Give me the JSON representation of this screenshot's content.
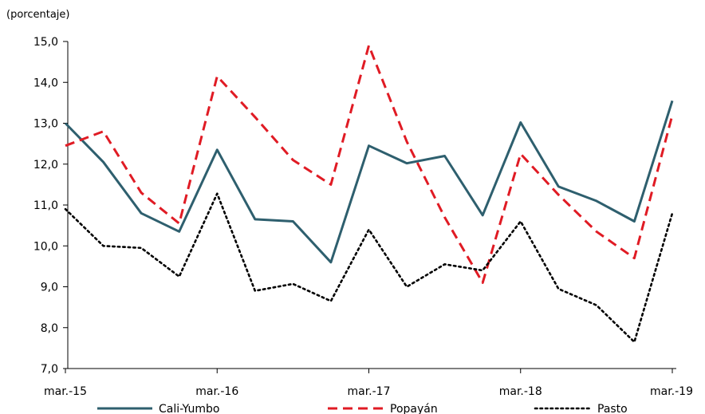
{
  "chart_data": {
    "type": "line",
    "title": "",
    "unit_label": "(porcentaje)",
    "xlabel": "",
    "ylabel": "",
    "x": [
      "mar.-15",
      "jun.-15",
      "sep.-15",
      "dic.-15",
      "mar.-16",
      "jun.-16",
      "sep.-16",
      "dic.-16",
      "mar.-17",
      "jun.-17",
      "sep.-17",
      "dic.-17",
      "mar.-18",
      "jun.-18",
      "sep.-18",
      "dic.-18",
      "mar.-19"
    ],
    "x_tick_labels": [
      "mar.-15",
      "mar.-16",
      "mar.-17",
      "mar.-18",
      "mar.-19"
    ],
    "ylim": [
      7.0,
      15.0
    ],
    "y_ticks": [
      "7,0",
      "8,0",
      "9,0",
      "10,0",
      "11,0",
      "12,0",
      "13,0",
      "14,0",
      "15,0"
    ],
    "grid": false,
    "legend_position": "bottom",
    "series": [
      {
        "name": "Cali-Yumbo",
        "color": "#2e5f6e",
        "style": "solid",
        "values": [
          13.0,
          12.05,
          10.8,
          10.35,
          12.35,
          10.65,
          10.6,
          9.6,
          12.45,
          12.02,
          12.2,
          10.75,
          13.02,
          11.45,
          11.1,
          10.6,
          13.55
        ]
      },
      {
        "name": "Popayán",
        "color": "#e01b24",
        "style": "dashed",
        "values": [
          12.45,
          12.8,
          11.3,
          10.55,
          14.15,
          13.15,
          12.1,
          11.5,
          14.9,
          12.55,
          10.7,
          9.1,
          12.25,
          11.25,
          10.35,
          9.7,
          13.2
        ]
      },
      {
        "name": "Pasto",
        "color": "#000000",
        "style": "dotted",
        "values": [
          10.9,
          10.0,
          9.95,
          9.25,
          11.28,
          8.9,
          9.07,
          8.65,
          10.4,
          9.0,
          9.55,
          9.4,
          10.6,
          8.95,
          8.55,
          7.65,
          10.8
        ]
      }
    ]
  }
}
